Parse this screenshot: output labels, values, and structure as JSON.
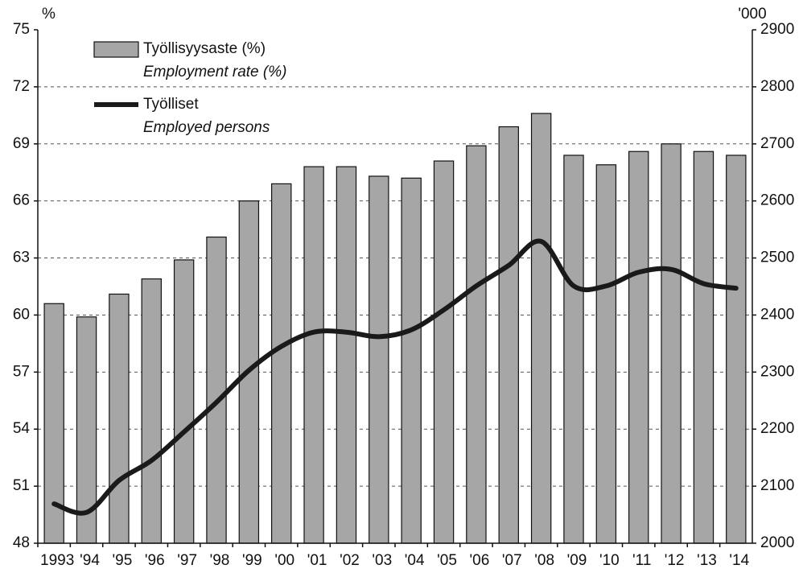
{
  "chart_data": {
    "type": "bar_line",
    "y_unit_label": "%",
    "y2_unit_label": "'000",
    "categories": [
      "1993",
      "'94",
      "'95",
      "'96",
      "'97",
      "'98",
      "'99",
      "'00",
      "'01",
      "'02",
      "'03",
      "'04",
      "'05",
      "'06",
      "'07",
      "'08",
      "'09",
      "'10",
      "'11",
      "'12",
      "'13",
      "'14"
    ],
    "series": [
      {
        "name": "Työllisyysaste (%)",
        "name_en": "Employment rate (%)",
        "type": "bar",
        "color": "#a6a6a6",
        "values": [
          60.6,
          59.9,
          61.1,
          61.9,
          62.9,
          64.1,
          66.0,
          66.9,
          67.8,
          67.8,
          67.3,
          67.2,
          68.1,
          68.9,
          69.9,
          70.6,
          68.4,
          67.9,
          68.6,
          69.0,
          68.6,
          68.4
        ]
      },
      {
        "name": "Työlliset",
        "name_en": "Employed persons",
        "type": "line",
        "axis": "y2",
        "color": "#1a1a1a",
        "values": [
          2069,
          2054,
          2110,
          2145,
          2195,
          2247,
          2303,
          2345,
          2370,
          2370,
          2362,
          2374,
          2409,
          2451,
          2487,
          2529,
          2451,
          2451,
          2475,
          2480,
          2455,
          2447
        ]
      }
    ],
    "ylim": [
      48,
      75
    ],
    "yticks": [
      48,
      51,
      54,
      57,
      60,
      63,
      66,
      69,
      72,
      75
    ],
    "y2lim": [
      2000,
      2900
    ],
    "y2ticks": [
      2000,
      2100,
      2200,
      2300,
      2400,
      2500,
      2600,
      2700,
      2800,
      2900
    ],
    "grid": true,
    "legend": "upper left"
  }
}
